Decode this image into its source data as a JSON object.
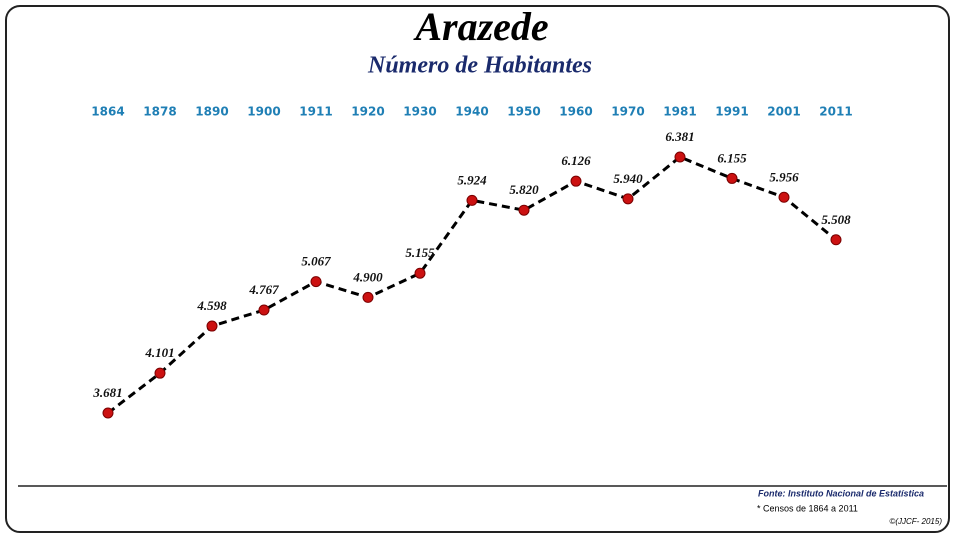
{
  "chart_data": {
    "type": "line",
    "title": "Arazede",
    "subtitle": "Número de Habitantes",
    "categories": [
      "1864",
      "1878",
      "1890",
      "1900",
      "1911",
      "1920",
      "1930",
      "1940",
      "1950",
      "1960",
      "1970",
      "1981",
      "1991",
      "2001",
      "2011"
    ],
    "values": [
      3681,
      4101,
      4598,
      4767,
      5067,
      4900,
      5155,
      5924,
      5820,
      6126,
      5940,
      6381,
      6155,
      5956,
      5508
    ],
    "value_labels": [
      "3.681",
      "4.101",
      "4.598",
      "4.767",
      "5.067",
      "4.900",
      "5.155",
      "5.924",
      "5.820",
      "6.126",
      "5.940",
      "6.381",
      "6.155",
      "5.956",
      "5.508"
    ],
    "color": "#000000",
    "marker_color": "#cc1111",
    "source": "Fonte: Instituto Nacional de Estatística",
    "note": "* Censos de 1864 a 2011",
    "credit": "©(JJCF- 2015)"
  }
}
